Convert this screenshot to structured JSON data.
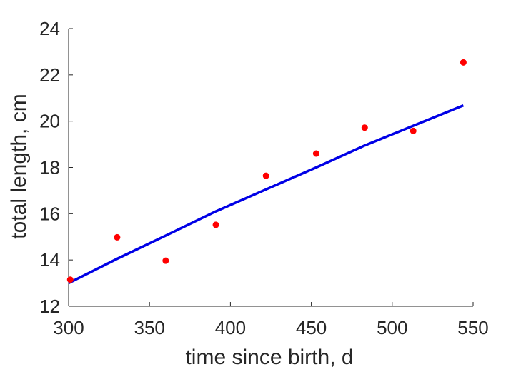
{
  "chart_data": {
    "type": "scatter",
    "title": "",
    "xlabel": "time since birth, d",
    "ylabel": "total length, cm",
    "xlim": [
      300,
      550
    ],
    "ylim": [
      12,
      24
    ],
    "xticks": [
      300,
      350,
      400,
      450,
      500,
      550
    ],
    "yticks": [
      12,
      14,
      16,
      18,
      20,
      22,
      24
    ],
    "grid": false,
    "legend": "none",
    "series": [
      {
        "kind": "scatter",
        "color": "#ff0000",
        "x": [
          301,
          330,
          360,
          391,
          422,
          453,
          483,
          513,
          544
        ],
        "y": [
          13.15,
          14.98,
          13.97,
          15.52,
          17.64,
          18.6,
          19.72,
          19.58,
          22.54
        ]
      },
      {
        "kind": "line",
        "color": "#0000e6",
        "x": [
          300,
          330,
          360,
          391,
          422,
          453,
          483,
          513,
          544
        ],
        "y": [
          13.0,
          14.05,
          15.05,
          16.1,
          17.05,
          18.0,
          18.95,
          19.8,
          20.68
        ]
      }
    ]
  }
}
